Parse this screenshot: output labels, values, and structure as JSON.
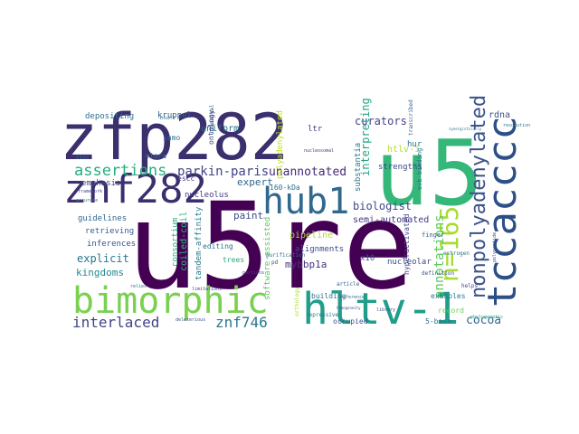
{
  "words": [
    {
      "text": "u5re",
      "color": "#440154"
    },
    {
      "text": "zfp282",
      "color": "#3b2f6e"
    },
    {
      "text": "u5",
      "color": "#35b779"
    },
    {
      "text": "tccacccc",
      "color": "#2c4f86"
    },
    {
      "text": "bimorphic",
      "color": "#7ad151"
    },
    {
      "text": "hltv-1",
      "color": "#1f9e89"
    },
    {
      "text": "znf282",
      "color": "#3b2f6e"
    },
    {
      "text": "hub1",
      "color": "#31688e"
    },
    {
      "text": "n=165",
      "color": "#a8db34"
    },
    {
      "text": "nonpolyadenylated",
      "color": "#3b528b"
    },
    {
      "text": "interlaced",
      "color": "#414487"
    },
    {
      "text": "znf746",
      "color": "#2a788e"
    },
    {
      "text": "assertions",
      "color": "#26ad81"
    },
    {
      "text": "cocoa",
      "color": "#31688e"
    },
    {
      "text": "parkin-paris",
      "color": "#414487"
    },
    {
      "text": "unannotated",
      "color": "#482878"
    },
    {
      "text": "biologist",
      "color": "#3e4a89"
    },
    {
      "text": "annotations",
      "color": "#5ec962"
    },
    {
      "text": "curators",
      "color": "#414487"
    },
    {
      "text": "explicit",
      "color": "#2a788e"
    },
    {
      "text": "kingdoms",
      "color": "#238a8d"
    },
    {
      "text": "mybbp1a",
      "color": "#46337e"
    },
    {
      "text": "semi-automated",
      "color": "#443983"
    },
    {
      "text": "expert",
      "color": "#31688e"
    },
    {
      "text": "paint",
      "color": "#3e4a89"
    },
    {
      "text": "interpreting",
      "color": "#21a585"
    },
    {
      "text": "uniform",
      "color": "#2c728e"
    },
    {
      "text": "rdna",
      "color": "#3b528b"
    },
    {
      "text": "emphasis",
      "color": "#414487"
    },
    {
      "text": "guidelines",
      "color": "#31688e"
    },
    {
      "text": "retrieving",
      "color": "#355f8d"
    },
    {
      "text": "inferences",
      "color": "#3b528b"
    },
    {
      "text": "coiled-coil",
      "color": "#2fb47c"
    },
    {
      "text": "consortium",
      "color": "#29af7f"
    },
    {
      "text": "tandem-affinity",
      "color": "#2a788e"
    },
    {
      "text": "software-assisted",
      "color": "#5ec962"
    },
    {
      "text": "polyadenylated",
      "color": "#c2df23"
    },
    {
      "text": "alignments",
      "color": "#3e4a89"
    },
    {
      "text": "pipeline",
      "color": "#addc30"
    },
    {
      "text": "editing",
      "color": "#2c728e"
    },
    {
      "text": "trees",
      "color": "#22a884"
    },
    {
      "text": "nucleolus",
      "color": "#443983"
    },
    {
      "text": "160-kDa",
      "color": "#2c728e"
    },
    {
      "text": "substantia",
      "color": "#2a788e"
    },
    {
      "text": "strengths",
      "color": "#414487"
    },
    {
      "text": "htlv-i",
      "color": "#b5de2b"
    },
    {
      "text": "hur",
      "color": "#2c728e"
    },
    {
      "text": "nigra",
      "color": "#31688e"
    },
    {
      "text": "sumo",
      "color": "#2c728e"
    },
    {
      "text": "escc",
      "color": "#443983"
    },
    {
      "text": "ontology",
      "color": "#3e4a89"
    },
    {
      "text": "kruppel",
      "color": "#355f8d"
    },
    {
      "text": "depositing",
      "color": "#2c728e"
    },
    {
      "text": "ltr",
      "color": "#46337e"
    },
    {
      "text": "x10",
      "color": "#3b528b"
    },
    {
      "text": "building",
      "color": "#2c728e"
    },
    {
      "text": "nucleolar",
      "color": "#3e4a89"
    },
    {
      "text": "hyperactivated",
      "color": "#414487"
    },
    {
      "text": "examples",
      "color": "#2a788e"
    },
    {
      "text": "record",
      "color": "#6ece58"
    },
    {
      "text": "5-base",
      "color": "#2c728e"
    },
    {
      "text": "occupied",
      "color": "#3b528b"
    },
    {
      "text": "repressive",
      "color": "#2c728e"
    },
    {
      "text": "finger",
      "color": "#355f8d"
    },
    {
      "text": "definition",
      "color": "#3b528b"
    },
    {
      "text": "helps",
      "color": "#414487"
    },
    {
      "text": "estrogen",
      "color": "#2a788e"
    },
    {
      "text": "article",
      "color": "#355f8d"
    },
    {
      "text": "purification",
      "color": "#2c728e"
    },
    {
      "text": "ribosomal",
      "color": "#3b528b"
    },
    {
      "text": "insert",
      "color": "#2c728e"
    },
    {
      "text": "zinc",
      "color": "#2c728e"
    },
    {
      "text": "portions",
      "color": "#3e4a89"
    },
    {
      "text": "limitations",
      "color": "#414487"
    },
    {
      "text": "deleterious",
      "color": "#3b528b"
    },
    {
      "text": "accurate",
      "color": "#2a788e"
    },
    {
      "text": "transcribed",
      "color": "#355f8d"
    },
    {
      "text": "reference",
      "color": "#2c728e"
    },
    {
      "text": "orthology",
      "color": "#addc30"
    },
    {
      "text": "library",
      "color": "#3b528b"
    },
    {
      "text": "phylogenetic",
      "color": "#22a884"
    },
    {
      "text": "polypeptide",
      "color": "#414487"
    },
    {
      "text": "resolution",
      "color": "#2a788e"
    },
    {
      "text": "framework",
      "color": "#3e4a89"
    },
    {
      "text": "relies",
      "color": "#2c728e"
    },
    {
      "text": "pd",
      "color": "#3b528b"
    },
    {
      "text": "synergistically",
      "color": "#2c728e"
    },
    {
      "text": "homogeneity",
      "color": "#3b528b"
    },
    {
      "text": "evb-binding",
      "color": "#2a788e"
    },
    {
      "text": "nucleosomal",
      "color": "#414487"
    }
  ]
}
